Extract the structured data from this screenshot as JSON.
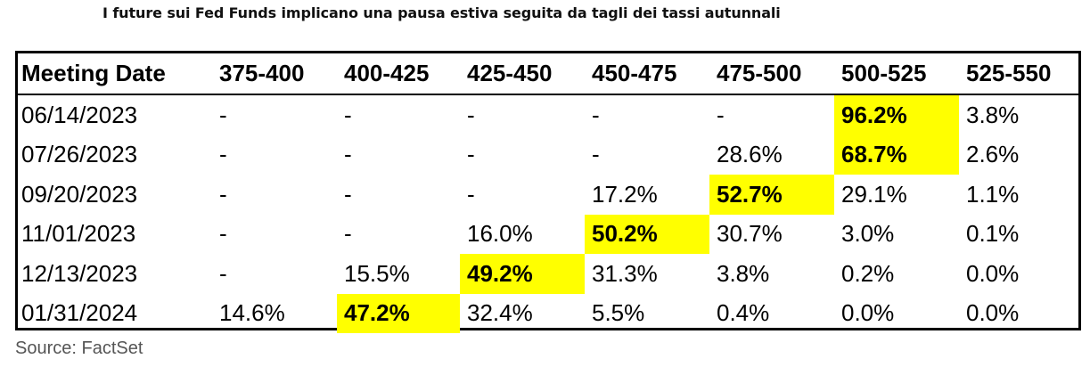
{
  "title": "I future sui Fed Funds implicano una pausa estiva seguita da tagli dei tassi autunnali",
  "source": "Source: FactSet",
  "highlight_color": "#ffff00",
  "chart_data": {
    "type": "table",
    "columns": [
      "Meeting Date",
      "375-400",
      "400-425",
      "425-450",
      "450-475",
      "475-500",
      "500-525",
      "525-550"
    ],
    "rows": [
      {
        "date": "06/14/2023",
        "values": [
          "-",
          "-",
          "-",
          "-",
          "-",
          "96.2%",
          "3.8%"
        ],
        "highlight": 5
      },
      {
        "date": "07/26/2023",
        "values": [
          "-",
          "-",
          "-",
          "-",
          "28.6%",
          "68.7%",
          "2.6%"
        ],
        "highlight": 5
      },
      {
        "date": "09/20/2023",
        "values": [
          "-",
          "-",
          "-",
          "17.2%",
          "52.7%",
          "29.1%",
          "1.1%"
        ],
        "highlight": 4
      },
      {
        "date": "11/01/2023",
        "values": [
          "-",
          "-",
          "16.0%",
          "50.2%",
          "30.7%",
          "3.0%",
          "0.1%"
        ],
        "highlight": 3
      },
      {
        "date": "12/13/2023",
        "values": [
          "-",
          "15.5%",
          "49.2%",
          "31.3%",
          "3.8%",
          "0.2%",
          "0.0%"
        ],
        "highlight": 2
      },
      {
        "date": "01/31/2024",
        "values": [
          "14.6%",
          "47.2%",
          "32.4%",
          "5.5%",
          "0.4%",
          "0.0%",
          "0.0%"
        ],
        "highlight": 1
      }
    ]
  }
}
